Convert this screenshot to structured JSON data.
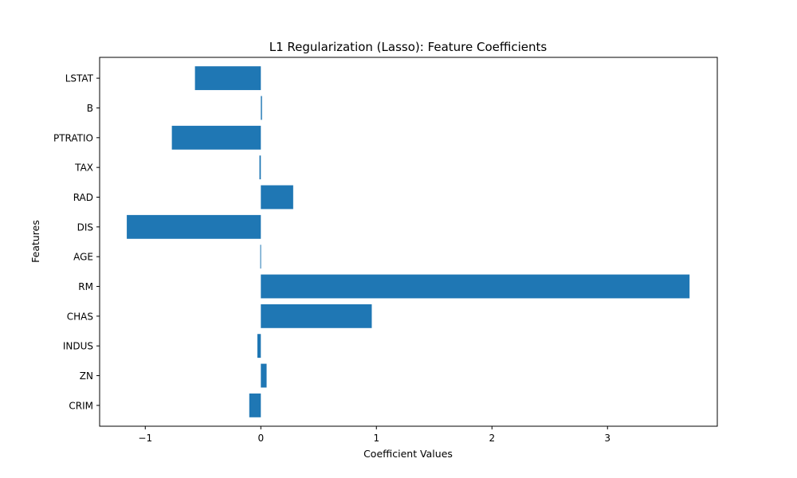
{
  "chart_data": {
    "type": "bar",
    "orientation": "horizontal",
    "title": "L1 Regularization (Lasso): Feature Coefficients",
    "xlabel": "Coefficient Values",
    "ylabel": "Features",
    "categories": [
      "CRIM",
      "ZN",
      "INDUS",
      "CHAS",
      "RM",
      "AGE",
      "DIS",
      "RAD",
      "TAX",
      "PTRATIO",
      "B",
      "LSTAT"
    ],
    "values": [
      -0.1,
      0.05,
      -0.03,
      0.96,
      3.71,
      -0.005,
      -1.16,
      0.28,
      -0.012,
      -0.77,
      0.01,
      -0.57
    ],
    "xlim": [
      -1.395,
      3.95
    ],
    "xticks": [
      -1,
      0,
      1,
      2,
      3
    ],
    "xtick_labels": [
      "−1",
      "0",
      "1",
      "2",
      "3"
    ],
    "bar_color": "#1f77b4",
    "grid": false,
    "legend": "none"
  }
}
